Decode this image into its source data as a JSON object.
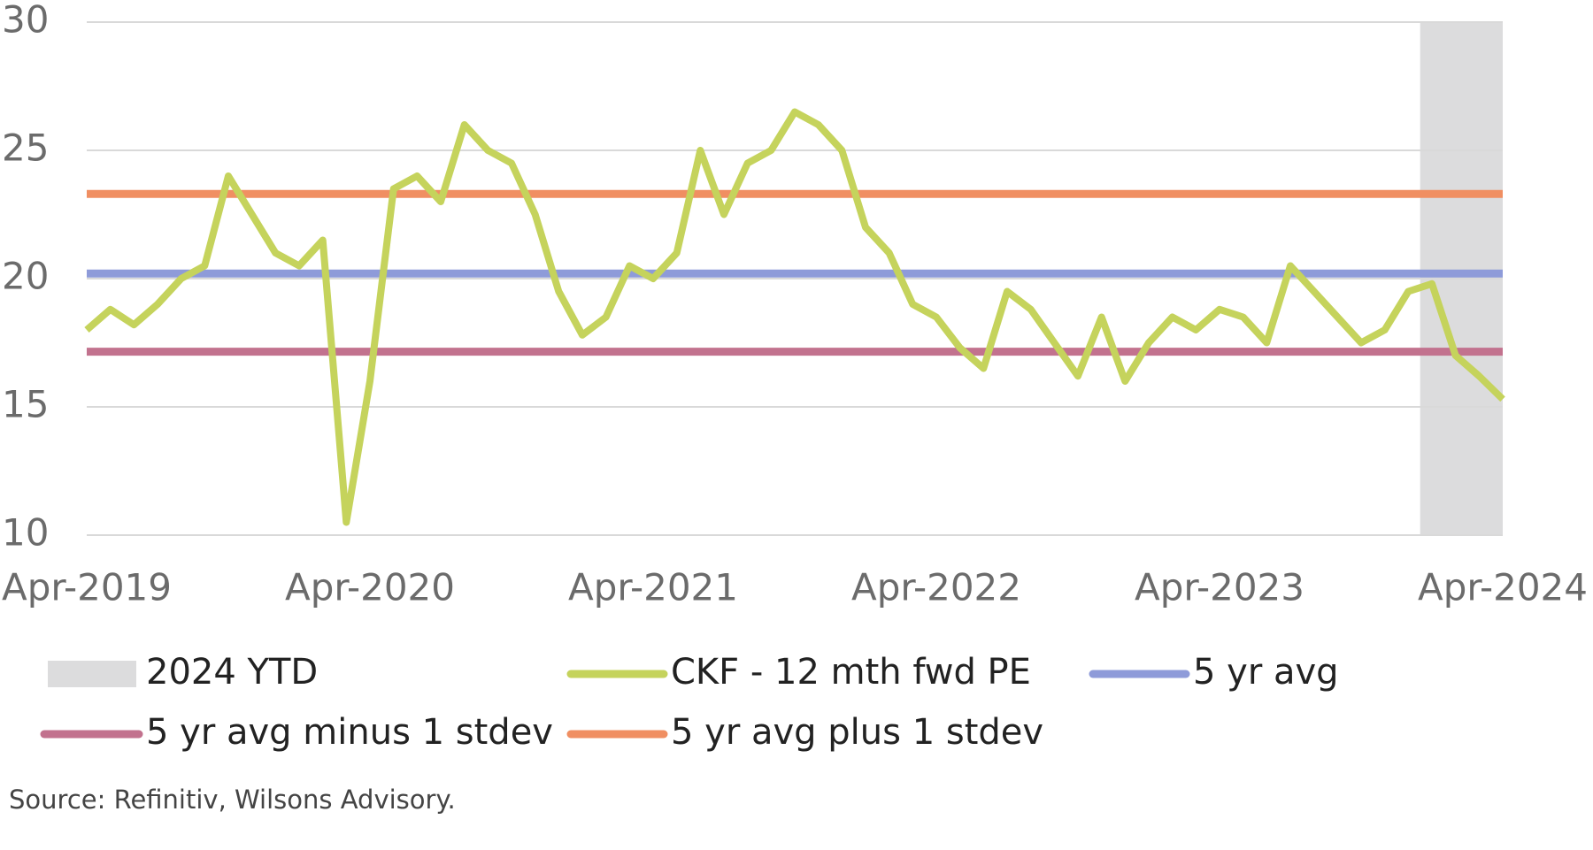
{
  "chart_data": {
    "type": "line",
    "categories": [
      "Apr-2019",
      null,
      null,
      null,
      null,
      null,
      null,
      null,
      null,
      null,
      null,
      null,
      "Apr-2020",
      null,
      null,
      null,
      null,
      null,
      null,
      null,
      null,
      null,
      null,
      null,
      "Apr-2021",
      null,
      null,
      null,
      null,
      null,
      null,
      null,
      null,
      null,
      null,
      null,
      "Apr-2022",
      null,
      null,
      null,
      null,
      null,
      null,
      null,
      null,
      null,
      null,
      null,
      "Apr-2023",
      null,
      null,
      null,
      null,
      null,
      null,
      null,
      null,
      null,
      null,
      null,
      "Apr-2024"
    ],
    "series": [
      {
        "name": "CKF - 12 mth fwd PE",
        "color": "#c5d35c",
        "values": [
          18,
          18.8,
          18.2,
          19,
          20,
          20.5,
          24,
          22.5,
          21,
          20.5,
          21.5,
          10.5,
          16,
          23.5,
          24,
          23,
          26,
          25,
          24.5,
          22.5,
          19.5,
          17.8,
          18.5,
          20.5,
          20,
          21,
          25,
          22.5,
          24.5,
          25,
          26.5,
          26,
          25,
          22,
          21,
          19,
          18.5,
          17.3,
          16.5,
          19.5,
          18.8,
          17.5,
          16.2,
          18.5,
          16,
          17.5,
          18.5,
          18,
          18.8,
          18.5,
          17.5,
          20.5,
          19.5,
          18.5,
          17.5,
          18,
          19.5,
          19.8,
          17,
          16.2,
          15.3
        ]
      }
    ],
    "reference_lines": [
      {
        "name": "5 yr avg",
        "color": "#8e9bd9",
        "value": 20.2
      },
      {
        "name": "5 yr avg minus 1 stdev",
        "color": "#c2728e",
        "value": 17.15
      },
      {
        "name": "5 yr avg plus 1 stdev",
        "color": "#f08f62",
        "value": 23.3
      }
    ],
    "shade": {
      "name": "2024 YTD",
      "color": "#dcdcdd",
      "span": [
        56.5,
        60
      ]
    },
    "ylim": [
      10,
      30
    ],
    "yticks": [
      10,
      15,
      20,
      25,
      30
    ],
    "grid": true,
    "source": "Source: Refinitiv, Wilsons Advisory."
  }
}
